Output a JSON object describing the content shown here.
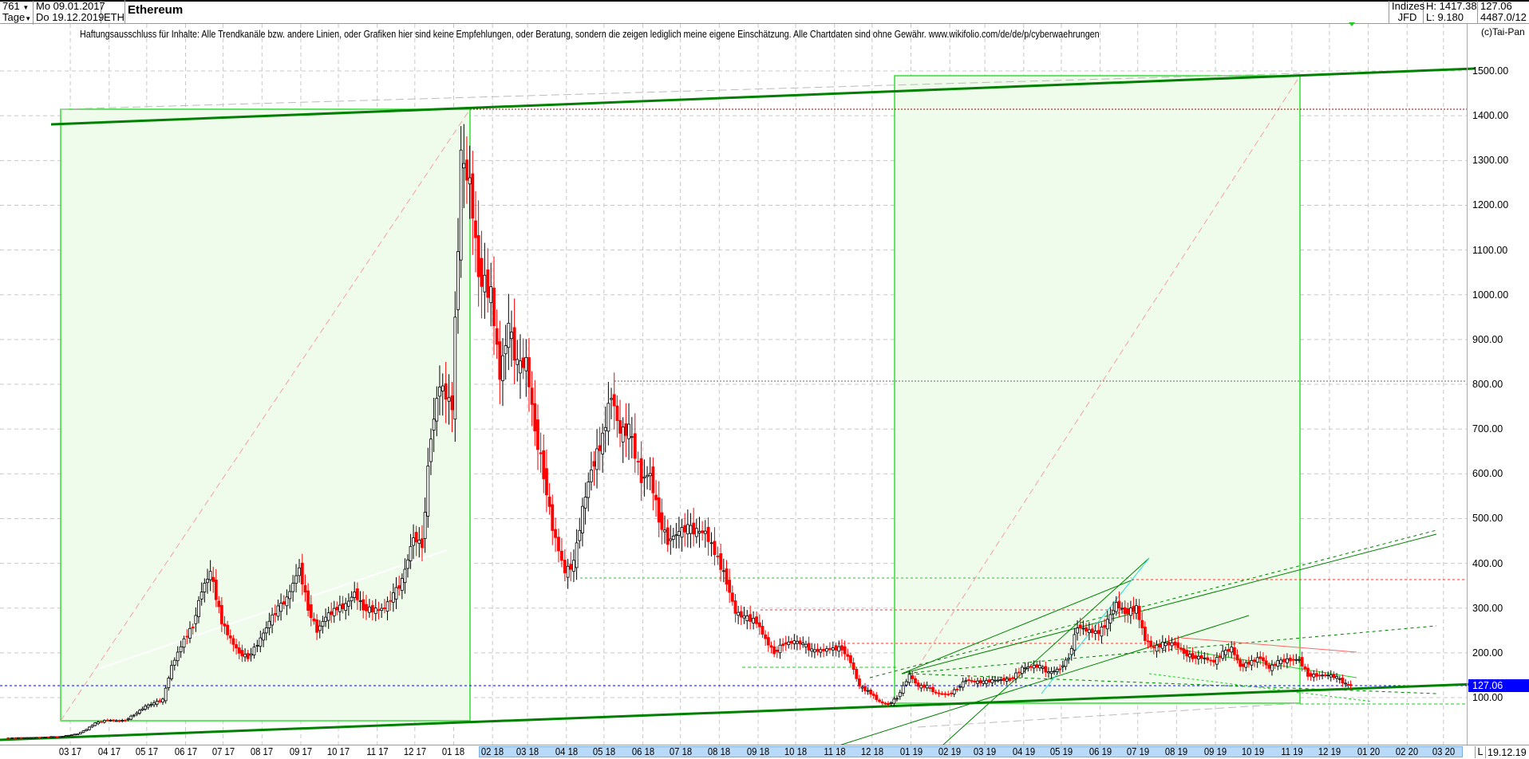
{
  "header": {
    "bars_count": "761",
    "start_date": "Mo 09.01.2017",
    "period": "Tage",
    "end_date": "Do 19.12.2019",
    "symbol": "ETH",
    "title": "Ethereum",
    "market": "Indizes",
    "source": "JFD",
    "high": "H: 1417.38",
    "low": "L: 9.180",
    "last": "127.06",
    "info": "4487.0/12",
    "dropdown_icon": "caret-down-icon"
  },
  "disclaimer": "Haftungsausschluss für Inhalte: Alle Trendkanäle bzw. andere Linien, oder Grafiken hier sind keine Empfehlungen, oder Beratung, sondern die zeigen lediglich meine eigene Einschätzung. Alle Chartdaten sind ohne Gewähr.  www.wikifolio.com/de/de/p/cyberwaehrungen",
  "copyright": "(c)Tai-Pan",
  "footer": {
    "l_button": "L",
    "date": "19.12.19"
  },
  "colors": {
    "up": "#000000",
    "down": "#ff0000",
    "channel_fill": "#effcec",
    "channel_border": "#33dd33",
    "trend_line": "#008000",
    "last_price": "#0000ff"
  },
  "chart_data": {
    "type": "candlestick",
    "title": "Ethereum",
    "y_ticks": [
      "1500.00",
      "1400.00",
      "1300.00",
      "1200.00",
      "1100.00",
      "1000.00",
      "900.00",
      "800.00",
      "700.00",
      "600.00",
      "500.00",
      "400.00",
      "300.00",
      "200.00",
      "100.00"
    ],
    "ylim": [
      9.18,
      1550
    ],
    "last_price": "127.06",
    "x_ticks": [
      "03 17",
      "04 17",
      "05 17",
      "06 17",
      "07 17",
      "08 17",
      "09 17",
      "10 17",
      "11 17",
      "12 17",
      "01 18",
      "02 18",
      "03 18",
      "04 18",
      "05 18",
      "06 18",
      "07 18",
      "08 18",
      "09 18",
      "10 18",
      "11 18",
      "12 18",
      "01 19",
      "02 19",
      "03 19",
      "04 19",
      "05 19",
      "06 19",
      "07 19",
      "08 19",
      "09 19",
      "10 19",
      "11 19",
      "12 19",
      "01 20",
      "02 20",
      "03 20"
    ],
    "grid": true,
    "series": [
      [
        "2017-01-09",
        10
      ],
      [
        "2017-01-15",
        10.2
      ],
      [
        "2017-01-22",
        10.6
      ],
      [
        "2017-02-01",
        11
      ],
      [
        "2017-02-08",
        11.3
      ],
      [
        "2017-02-15",
        12.8
      ],
      [
        "2017-02-22",
        13
      ],
      [
        "2017-03-01",
        16
      ],
      [
        "2017-03-08",
        19
      ],
      [
        "2017-03-15",
        29
      ],
      [
        "2017-03-22",
        43
      ],
      [
        "2017-04-01",
        50
      ],
      [
        "2017-04-08",
        48
      ],
      [
        "2017-04-15",
        49
      ],
      [
        "2017-04-22",
        62
      ],
      [
        "2017-05-01",
        80
      ],
      [
        "2017-05-08",
        88
      ],
      [
        "2017-05-15",
        95
      ],
      [
        "2017-05-22",
        170
      ],
      [
        "2017-06-01",
        230
      ],
      [
        "2017-06-08",
        260
      ],
      [
        "2017-06-15",
        340
      ],
      [
        "2017-06-22",
        380
      ],
      [
        "2017-07-01",
        270
      ],
      [
        "2017-07-08",
        230
      ],
      [
        "2017-07-15",
        200
      ],
      [
        "2017-07-22",
        190
      ],
      [
        "2017-08-01",
        230
      ],
      [
        "2017-08-08",
        270
      ],
      [
        "2017-08-15",
        300
      ],
      [
        "2017-08-22",
        320
      ],
      [
        "2017-09-01",
        390
      ],
      [
        "2017-09-08",
        300
      ],
      [
        "2017-09-15",
        250
      ],
      [
        "2017-09-22",
        280
      ],
      [
        "2017-10-01",
        300
      ],
      [
        "2017-10-08",
        305
      ],
      [
        "2017-10-15",
        335
      ],
      [
        "2017-10-22",
        300
      ],
      [
        "2017-11-01",
        295
      ],
      [
        "2017-11-08",
        300
      ],
      [
        "2017-11-15",
        330
      ],
      [
        "2017-11-22",
        360
      ],
      [
        "2017-12-01",
        460
      ],
      [
        "2017-12-08",
        440
      ],
      [
        "2017-12-15",
        690
      ],
      [
        "2017-12-22",
        800
      ],
      [
        "2018-01-01",
        750
      ],
      [
        "2018-01-08",
        1300
      ],
      [
        "2018-01-15",
        1250
      ],
      [
        "2018-01-22",
        1050
      ],
      [
        "2018-02-01",
        1000
      ],
      [
        "2018-02-08",
        820
      ],
      [
        "2018-02-15",
        930
      ],
      [
        "2018-02-22",
        840
      ],
      [
        "2018-03-01",
        850
      ],
      [
        "2018-03-08",
        700
      ],
      [
        "2018-03-15",
        600
      ],
      [
        "2018-03-22",
        480
      ],
      [
        "2018-04-01",
        380
      ],
      [
        "2018-04-08",
        400
      ],
      [
        "2018-04-15",
        520
      ],
      [
        "2018-04-22",
        610
      ],
      [
        "2018-05-01",
        680
      ],
      [
        "2018-05-08",
        780
      ],
      [
        "2018-05-15",
        690
      ],
      [
        "2018-05-22",
        700
      ],
      [
        "2018-06-01",
        590
      ],
      [
        "2018-06-08",
        600
      ],
      [
        "2018-06-15",
        500
      ],
      [
        "2018-06-22",
        450
      ],
      [
        "2018-07-01",
        470
      ],
      [
        "2018-07-08",
        480
      ],
      [
        "2018-07-15",
        470
      ],
      [
        "2018-07-22",
        470
      ],
      [
        "2018-08-01",
        410
      ],
      [
        "2018-08-08",
        360
      ],
      [
        "2018-08-15",
        290
      ],
      [
        "2018-08-22",
        280
      ],
      [
        "2018-09-01",
        270
      ],
      [
        "2018-09-08",
        230
      ],
      [
        "2018-09-15",
        200
      ],
      [
        "2018-09-22",
        220
      ],
      [
        "2018-10-01",
        225
      ],
      [
        "2018-10-08",
        220
      ],
      [
        "2018-10-15",
        205
      ],
      [
        "2018-10-22",
        205
      ],
      [
        "2018-11-01",
        210
      ],
      [
        "2018-11-08",
        210
      ],
      [
        "2018-11-15",
        180
      ],
      [
        "2018-11-22",
        125
      ],
      [
        "2018-12-01",
        110
      ],
      [
        "2018-12-08",
        90
      ],
      [
        "2018-12-15",
        85
      ],
      [
        "2018-12-22",
        100
      ],
      [
        "2019-01-01",
        150
      ],
      [
        "2019-01-08",
        125
      ],
      [
        "2019-01-15",
        125
      ],
      [
        "2019-01-22",
        110
      ],
      [
        "2019-02-01",
        107
      ],
      [
        "2019-02-08",
        120
      ],
      [
        "2019-02-15",
        140
      ],
      [
        "2019-02-22",
        135
      ],
      [
        "2019-03-01",
        135
      ],
      [
        "2019-03-08",
        138
      ],
      [
        "2019-03-15",
        140
      ],
      [
        "2019-03-22",
        140
      ],
      [
        "2019-04-01",
        165
      ],
      [
        "2019-04-08",
        170
      ],
      [
        "2019-04-15",
        170
      ],
      [
        "2019-04-22",
        155
      ],
      [
        "2019-05-01",
        165
      ],
      [
        "2019-05-08",
        190
      ],
      [
        "2019-05-15",
        260
      ],
      [
        "2019-05-22",
        250
      ],
      [
        "2019-06-01",
        245
      ],
      [
        "2019-06-08",
        270
      ],
      [
        "2019-06-15",
        310
      ],
      [
        "2019-06-22",
        290
      ],
      [
        "2019-07-01",
        300
      ],
      [
        "2019-07-08",
        230
      ],
      [
        "2019-07-15",
        210
      ],
      [
        "2019-07-22",
        220
      ],
      [
        "2019-08-01",
        220
      ],
      [
        "2019-08-08",
        200
      ],
      [
        "2019-08-15",
        190
      ],
      [
        "2019-08-22",
        190
      ],
      [
        "2019-09-01",
        180
      ],
      [
        "2019-09-08",
        200
      ],
      [
        "2019-09-15",
        210
      ],
      [
        "2019-09-22",
        170
      ],
      [
        "2019-10-01",
        180
      ],
      [
        "2019-10-08",
        190
      ],
      [
        "2019-10-15",
        165
      ],
      [
        "2019-10-22",
        180
      ],
      [
        "2019-11-01",
        185
      ],
      [
        "2019-11-08",
        185
      ],
      [
        "2019-11-15",
        150
      ],
      [
        "2019-11-22",
        150
      ],
      [
        "2019-12-01",
        150
      ],
      [
        "2019-12-08",
        145
      ],
      [
        "2019-12-15",
        130
      ],
      [
        "2019-12-19",
        127.06
      ]
    ]
  }
}
